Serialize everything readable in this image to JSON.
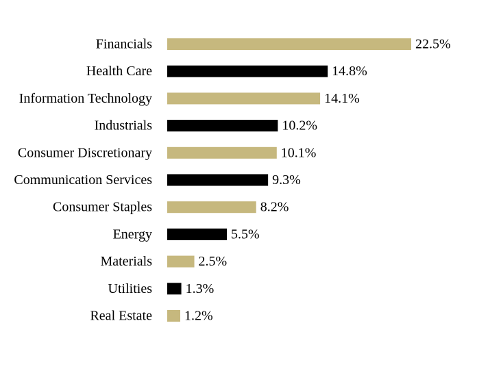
{
  "chart_data": {
    "type": "bar",
    "orientation": "horizontal",
    "title": "",
    "xlabel": "",
    "ylabel": "",
    "categories": [
      "Financials",
      "Health Care",
      "Information Technology",
      "Industrials",
      "Consumer Discretionary",
      "Communication Services",
      "Consumer Staples",
      "Energy",
      "Materials",
      "Utilities",
      "Real Estate"
    ],
    "values": [
      22.5,
      14.8,
      14.1,
      10.2,
      10.1,
      9.3,
      8.2,
      5.5,
      2.5,
      1.3,
      1.2
    ],
    "value_labels": [
      "22.5%",
      "14.8%",
      "14.1%",
      "10.2%",
      "10.1%",
      "9.3%",
      "8.2%",
      "5.5%",
      "2.5%",
      "1.3%",
      "1.2%"
    ],
    "xlim": [
      0,
      22.5
    ],
    "grid": false,
    "legend": "none",
    "bar_colors": [
      "#c6b87e",
      "#000000"
    ]
  }
}
